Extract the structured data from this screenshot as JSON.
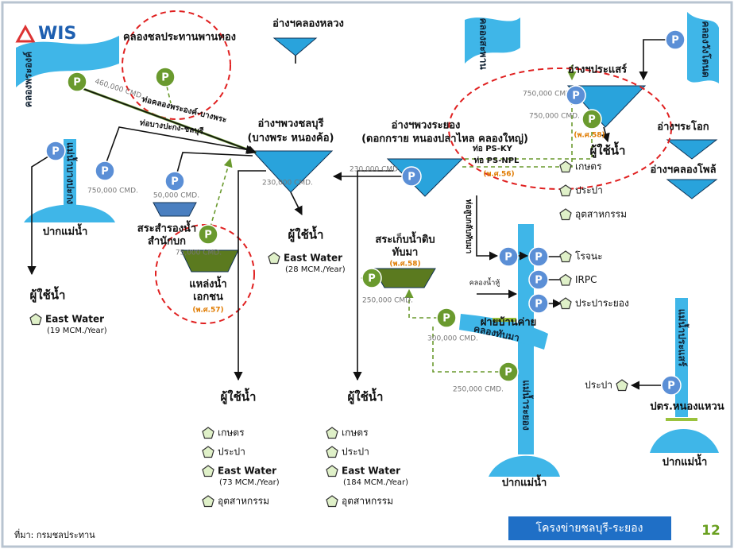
{
  "header": {
    "logo": "WIS"
  },
  "reservoirs": [
    "คลองชลประทานพานทอง",
    "อ่างฯคลองหลวง",
    "อ่างฯพวงชลบุรี",
    "(บางพระ หนองค้อ)",
    "อ่างฯพวงระยอง",
    "(ดอกกราย หนองปลาไหล คลองใหญ่)",
    "อ่างฯประแสร์",
    "อ่างฯระโอก",
    "อ่างฯคลองโพล้",
    "สระสำรองน้ำ",
    "สำนักบก",
    "แหล่งน้ำ",
    "เอกชน",
    "สระเก็บน้ำดิบ",
    "ทับมา"
  ],
  "waterways": [
    "คลองพระองค์",
    "คลองสะพาน",
    "คลองวังโตนด",
    "แม่น้ำบางปะกง",
    "แม่น้ำระยอง",
    "แม่น้ำประแสร์",
    "คลองทับมา",
    "คลองน้ำหู้"
  ],
  "pipes": [
    "ท่อคลองพระองค์-บางพระ",
    "ท่อบางปะกง-ชลบุรี",
    "ท่อ PS-KY",
    "ท่อ PS-NPL",
    "ท่อสูบกลับทับมา"
  ],
  "flows": [
    "460,000 CMD.",
    "750,000 CMD.",
    "50,000 CMD.",
    "75,000 CMD.",
    "230,000 CMD.",
    "230,000 CMD.",
    "750,000 CMD.",
    "750,000 CMD.",
    "250,000 CMD.",
    "300,000 CMD.",
    "250,000 CMD."
  ],
  "years": [
    "(พ.ศ.57)",
    "(พ.ศ.58)",
    "(พ.ศ.56)",
    "(พ.ศ.58)"
  ],
  "structures": [
    "ฝายบ้านค่าย",
    "ปตร.หนองแหวน"
  ],
  "river_mouth": "ปากแม่น้ำ",
  "pump": "P",
  "user_groups": [
    {
      "title": "ผู้ใช้น้ำ",
      "items": [
        {
          "name": "East Water",
          "note": "(19 MCM./Year)"
        }
      ]
    },
    {
      "title": "ผู้ใช้น้ำ",
      "items": [
        {
          "name": "East Water",
          "note": "(28 MCM./Year)"
        }
      ]
    },
    {
      "title": "ผู้ใช้น้ำ",
      "items": [
        {
          "name": "เกษตร"
        },
        {
          "name": "ประปา"
        },
        {
          "name": "East Water",
          "note": "(73 MCM./Year)"
        },
        {
          "name": "อุตสาหกรรม"
        }
      ]
    },
    {
      "title": "ผู้ใช้น้ำ",
      "items": [
        {
          "name": "เกษตร"
        },
        {
          "name": "ประปา"
        },
        {
          "name": "East Water",
          "note": "(184 MCM./Year)"
        },
        {
          "name": "อุตสาหกรรม"
        }
      ]
    },
    {
      "title": "ผู้ใช้น้ำ",
      "items": [
        {
          "name": "เกษตร"
        },
        {
          "name": "ประปา"
        },
        {
          "name": "อุตสาหกรรม"
        }
      ]
    },
    {
      "items": [
        {
          "name": "โรจนะ"
        },
        {
          "name": "IRPC"
        },
        {
          "name": "ประปาระยอง"
        }
      ]
    },
    {
      "items": [
        {
          "name": "ประปา"
        }
      ]
    }
  ],
  "footer": {
    "source": "ที่มา: กรมชลประทาน",
    "banner": "โครงข่ายชลบุรี-ระยอง",
    "page": "12"
  }
}
